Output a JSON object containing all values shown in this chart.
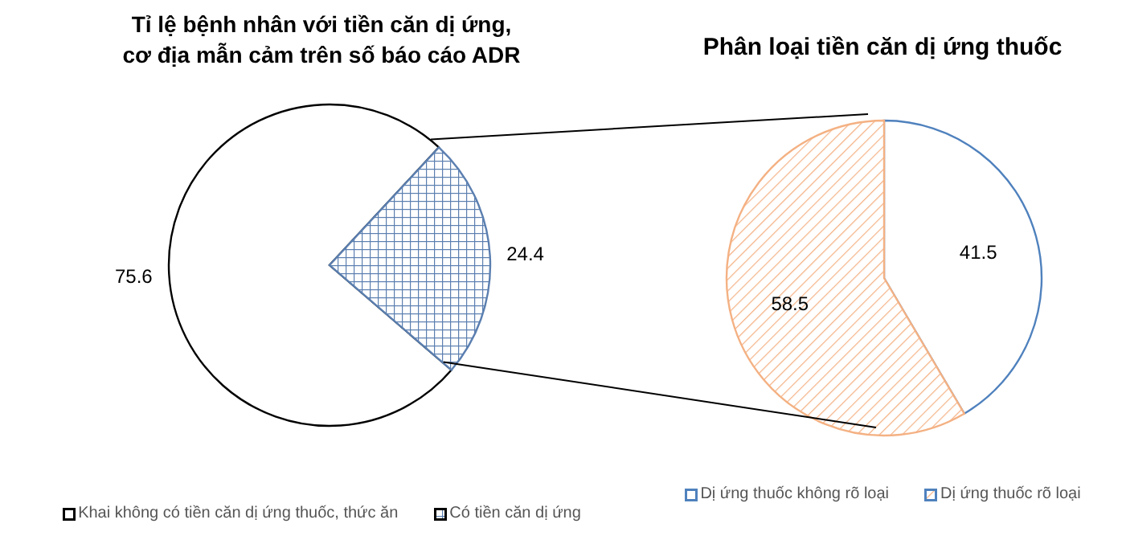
{
  "chart_data": [
    {
      "type": "pie",
      "title": "Tỉ lệ bệnh nhân với tiền căn dị ứng,\ncơ địa mẫn cảm trên số báo cáo ADR",
      "categories": [
        "Khai không có tiền căn dị ứng thuốc, thức ăn",
        "Có tiền căn dị ứng"
      ],
      "values": [
        75.6,
        24.4
      ],
      "colors": [
        "#ffffff",
        "#5b7fb0"
      ],
      "data_labels": true,
      "legend": "bottom"
    },
    {
      "type": "pie",
      "title": "Phân loại tiền căn dị ứng thuốc",
      "categories": [
        "Dị ứng thuốc không rõ loại",
        "Dị ứng thuốc rõ loại"
      ],
      "values": [
        41.5,
        58.5
      ],
      "colors": [
        "#ffffff",
        "#f4b183"
      ],
      "data_labels": true,
      "legend": "bottom"
    }
  ]
}
